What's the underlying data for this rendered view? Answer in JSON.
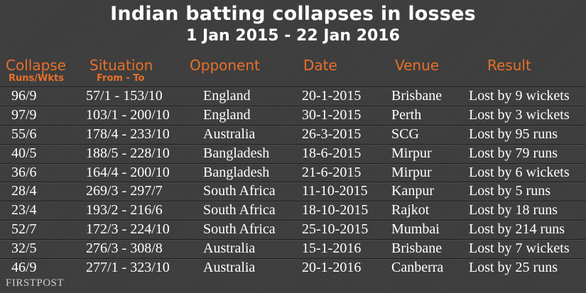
{
  "title": "Indian batting collapses in losses",
  "subtitle": "1 Jan 2015 - 22 Jan 2016",
  "header": {
    "collapse": "Collapse",
    "collapse_sub": "Runs/Wkts",
    "situation": "Situation",
    "situation_sub": "From - To",
    "opponent": "Opponent",
    "date": "Date",
    "venue": "Venue",
    "result": "Result"
  },
  "colors": {
    "header": "#e8702a",
    "background": "#3d3d3d",
    "text": "#ffffff"
  },
  "logo": {
    "text": "FIRSTPOST",
    "dot": "."
  },
  "chart_data": {
    "type": "table",
    "title": "Indian batting collapses in losses",
    "subtitle": "1 Jan 2015 - 22 Jan 2016",
    "columns": [
      "Collapse Runs/Wkts",
      "Situation From - To",
      "Opponent",
      "Date",
      "Venue",
      "Result"
    ],
    "rows": [
      [
        "96/9",
        "57/1 - 153/10",
        "England",
        "20-1-2015",
        "Brisbane",
        "Lost by 9 wickets"
      ],
      [
        "97/9",
        "103/1 - 200/10",
        "England",
        "30-1-2015",
        "Perth",
        "Lost by 3 wickets"
      ],
      [
        "55/6",
        "178/4 - 233/10",
        "Australia",
        "26-3-2015",
        "SCG",
        "Lost by 95 runs"
      ],
      [
        "40/5",
        "188/5 - 228/10",
        "Bangladesh",
        "18-6-2015",
        "Mirpur",
        "Lost by 79 runs"
      ],
      [
        "36/6",
        "164/4 - 200/10",
        "Bangladesh",
        "21-6-2015",
        "Mirpur",
        "Lost by 6 wickets"
      ],
      [
        "28/4",
        "269/3 - 297/7",
        "South Africa",
        "11-10-2015",
        "Kanpur",
        "Lost by 5 runs"
      ],
      [
        "23/4",
        "193/2 - 216/6",
        "South Africa",
        "18-10-2015",
        "Rajkot",
        "Lost by 18 runs"
      ],
      [
        "52/7",
        "172/3 - 224/10",
        "South Africa",
        "25-10-2015",
        "Mumbai",
        "Lost by 214 runs"
      ],
      [
        "32/5",
        "276/3 - 308/8",
        "Australia",
        "15-1-2016",
        "Brisbane",
        "Lost by 7 wickets"
      ],
      [
        "46/9",
        "277/1 - 323/10",
        "Australia",
        "20-1-2016",
        "Canberra",
        "Lost by 25 runs"
      ]
    ]
  }
}
